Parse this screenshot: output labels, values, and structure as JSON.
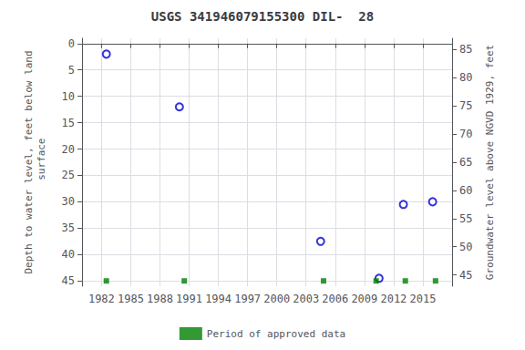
{
  "chart_data": {
    "type": "scatter",
    "title": "USGS 341946079155300 DIL-  28",
    "xlim": [
      1980,
      2018
    ],
    "xticks": [
      1982,
      1985,
      1988,
      1991,
      1994,
      1997,
      2000,
      2003,
      2006,
      2009,
      2012,
      2015
    ],
    "ylim": [
      46,
      -1
    ],
    "yticks": [
      0,
      5,
      10,
      15,
      20,
      25,
      30,
      35,
      40,
      45
    ],
    "ylabel": "Depth to water level, feet below land\n surface",
    "y2lim": [
      43,
      87
    ],
    "y2ticks": [
      45,
      50,
      55,
      60,
      65,
      70,
      75,
      80,
      85
    ],
    "y2label": "Groundwater level above NGVD 1929, feet",
    "grid": true,
    "legend": "bottom",
    "series": [
      {
        "x": [
          1982.5,
          1990.0,
          2004.5,
          2010.5,
          2013.0,
          2016.0
        ],
        "values": [
          2.0,
          12.0,
          37.5,
          44.5,
          30.5,
          30.0
        ],
        "color": "#0000cd",
        "marker": "open_circle"
      },
      {
        "name": "Period of approved data",
        "x": [
          1982.5,
          1990.5,
          2004.8,
          2010.2,
          2013.2,
          2016.3
        ],
        "values": [
          45,
          45,
          45,
          45,
          45,
          45
        ],
        "color": "#008000",
        "marker": "square"
      }
    ]
  }
}
